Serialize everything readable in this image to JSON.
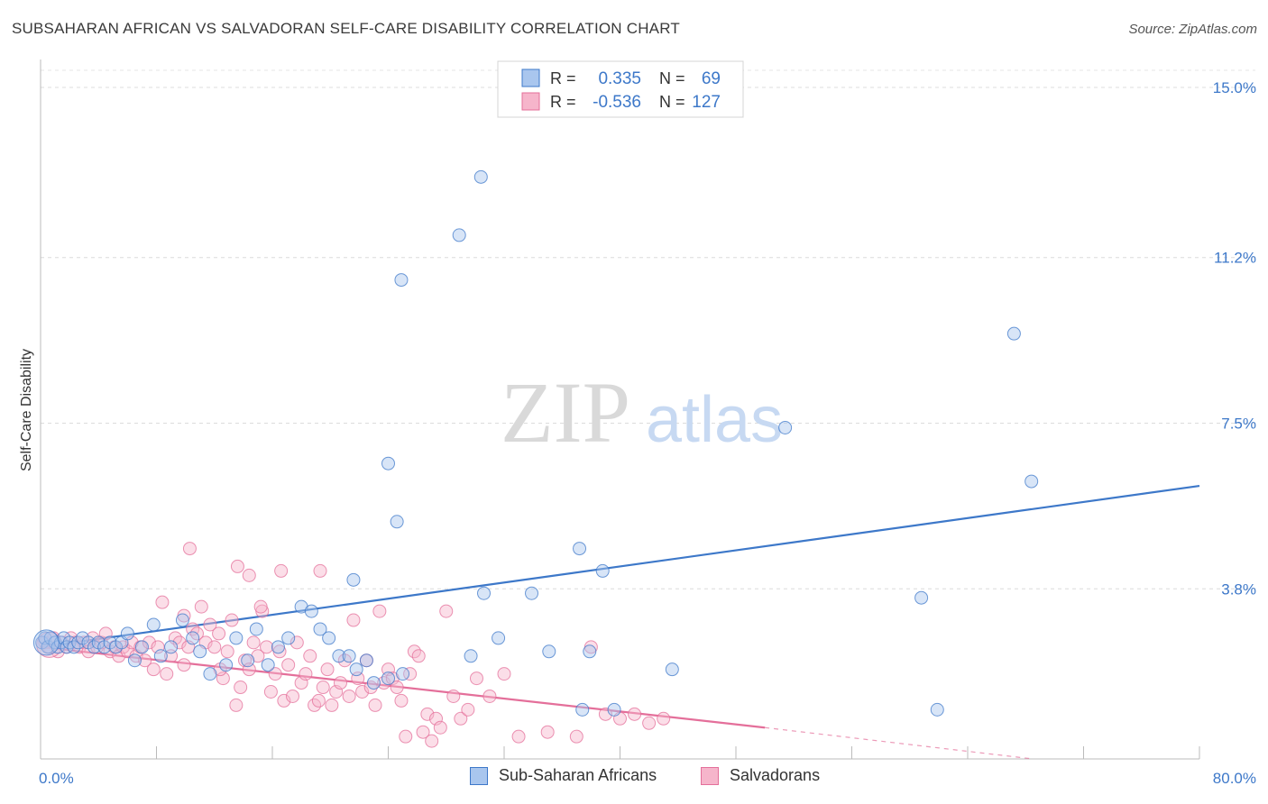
{
  "header": {
    "title": "SUBSAHARAN AFRICAN VS SALVADORAN SELF-CARE DISABILITY CORRELATION CHART",
    "source": "Source: ZipAtlas.com"
  },
  "stats": {
    "r_label": "R =",
    "n_label": "N =",
    "rows": [
      {
        "r": "0.335",
        "n": "69"
      },
      {
        "r": "-0.536",
        "n": "127"
      }
    ]
  },
  "watermark": {
    "zip": "ZIP",
    "atlas": "atlas"
  },
  "chart_data": {
    "type": "scatter",
    "ylabel": "Self-Care Disability",
    "xlabel": "",
    "xlim": [
      0,
      80
    ],
    "ylim": [
      0,
      15.5
    ],
    "x_tick_labels": [
      "0.0%",
      "80.0%"
    ],
    "y_ticks": [
      3.8,
      7.5,
      11.2,
      15.0
    ],
    "y_tick_labels": [
      "3.8%",
      "7.5%",
      "11.2%",
      "15.0%"
    ],
    "grid": true,
    "colors": {
      "blue": "#3d78c9",
      "blue_fill": "#a9c6ee",
      "pink": "#e46f9a",
      "pink_fill": "#f6b5cb"
    },
    "series": [
      {
        "name": "Sub-Saharan Africans",
        "color": "#3d78c9",
        "trend": {
          "x0": 0,
          "y0": 2.5,
          "x1": 80,
          "y1": 6.1
        },
        "points": [
          [
            0.1,
            2.6
          ],
          [
            0.3,
            2.7
          ],
          [
            0.5,
            2.5
          ],
          [
            0.7,
            2.7
          ],
          [
            1.0,
            2.6
          ],
          [
            1.2,
            2.5
          ],
          [
            1.4,
            2.6
          ],
          [
            1.6,
            2.7
          ],
          [
            1.8,
            2.5
          ],
          [
            2.0,
            2.6
          ],
          [
            2.3,
            2.5
          ],
          [
            2.6,
            2.6
          ],
          [
            2.9,
            2.7
          ],
          [
            3.3,
            2.6
          ],
          [
            3.7,
            2.5
          ],
          [
            4.0,
            2.6
          ],
          [
            4.4,
            2.5
          ],
          [
            4.8,
            2.6
          ],
          [
            5.2,
            2.5
          ],
          [
            5.6,
            2.6
          ],
          [
            6.0,
            2.8
          ],
          [
            6.5,
            2.2
          ],
          [
            7.0,
            2.5
          ],
          [
            7.8,
            3.0
          ],
          [
            8.3,
            2.3
          ],
          [
            9.0,
            2.5
          ],
          [
            9.8,
            3.1
          ],
          [
            10.5,
            2.7
          ],
          [
            11.0,
            2.4
          ],
          [
            11.7,
            1.9
          ],
          [
            12.8,
            2.1
          ],
          [
            13.5,
            2.7
          ],
          [
            14.3,
            2.2
          ],
          [
            14.9,
            2.9
          ],
          [
            15.7,
            2.1
          ],
          [
            16.4,
            2.5
          ],
          [
            17.1,
            2.7
          ],
          [
            18.0,
            3.4
          ],
          [
            18.7,
            3.3
          ],
          [
            19.3,
            2.9
          ],
          [
            19.9,
            2.7
          ],
          [
            20.6,
            2.3
          ],
          [
            21.3,
            2.3
          ],
          [
            21.8,
            2.0
          ],
          [
            22.5,
            2.2
          ],
          [
            23.0,
            1.7
          ],
          [
            24.0,
            1.8
          ],
          [
            25.0,
            1.9
          ],
          [
            21.6,
            4.0
          ],
          [
            24.6,
            5.3
          ],
          [
            24.0,
            6.6
          ],
          [
            24.9,
            10.7
          ],
          [
            28.9,
            11.7
          ],
          [
            30.4,
            13.0
          ],
          [
            30.6,
            3.7
          ],
          [
            29.7,
            2.3
          ],
          [
            31.6,
            2.7
          ],
          [
            33.9,
            3.7
          ],
          [
            35.1,
            2.4
          ],
          [
            37.4,
            1.1
          ],
          [
            37.2,
            4.7
          ],
          [
            38.8,
            4.2
          ],
          [
            37.9,
            2.4
          ],
          [
            39.6,
            1.1
          ],
          [
            43.6,
            2.0
          ],
          [
            51.4,
            7.4
          ],
          [
            60.8,
            3.6
          ],
          [
            61.9,
            1.1
          ],
          [
            67.2,
            9.5
          ],
          [
            68.4,
            6.2
          ]
        ],
        "radius": 7,
        "big_points": [
          [
            0.4,
            2.6
          ]
        ]
      },
      {
        "name": "Salvadorans",
        "color": "#e46f9a",
        "trend": {
          "x0": 0,
          "y0": 2.5,
          "x1": 50,
          "y1": 0.7,
          "dash_x1": 68.5,
          "dash_y1": 0.0
        },
        "points": [
          [
            0.3,
            2.6
          ],
          [
            0.6,
            2.5
          ],
          [
            0.9,
            2.7
          ],
          [
            1.2,
            2.4
          ],
          [
            1.5,
            2.6
          ],
          [
            1.8,
            2.5
          ],
          [
            2.1,
            2.7
          ],
          [
            2.4,
            2.6
          ],
          [
            2.7,
            2.5
          ],
          [
            3.0,
            2.6
          ],
          [
            3.3,
            2.4
          ],
          [
            3.6,
            2.7
          ],
          [
            3.9,
            2.5
          ],
          [
            4.2,
            2.6
          ],
          [
            4.5,
            2.8
          ],
          [
            4.8,
            2.4
          ],
          [
            5.1,
            2.5
          ],
          [
            5.4,
            2.3
          ],
          [
            5.7,
            2.5
          ],
          [
            6.0,
            2.4
          ],
          [
            6.3,
            2.6
          ],
          [
            6.6,
            2.3
          ],
          [
            6.9,
            2.5
          ],
          [
            7.2,
            2.2
          ],
          [
            7.5,
            2.6
          ],
          [
            7.8,
            2.0
          ],
          [
            8.1,
            2.5
          ],
          [
            8.4,
            3.5
          ],
          [
            8.7,
            1.9
          ],
          [
            9.0,
            2.3
          ],
          [
            9.3,
            2.7
          ],
          [
            9.6,
            2.6
          ],
          [
            9.9,
            2.1
          ],
          [
            10.2,
            2.5
          ],
          [
            10.5,
            2.9
          ],
          [
            10.8,
            2.8
          ],
          [
            11.1,
            3.4
          ],
          [
            11.4,
            2.6
          ],
          [
            11.7,
            3.0
          ],
          [
            12.0,
            2.5
          ],
          [
            12.3,
            2.8
          ],
          [
            12.6,
            1.8
          ],
          [
            12.9,
            2.4
          ],
          [
            13.2,
            3.1
          ],
          [
            13.5,
            1.2
          ],
          [
            13.8,
            1.6
          ],
          [
            14.1,
            2.2
          ],
          [
            14.4,
            2.0
          ],
          [
            14.7,
            2.6
          ],
          [
            15.0,
            2.3
          ],
          [
            15.3,
            3.3
          ],
          [
            15.6,
            2.5
          ],
          [
            15.9,
            1.5
          ],
          [
            16.2,
            1.9
          ],
          [
            16.5,
            2.4
          ],
          [
            16.8,
            1.3
          ],
          [
            17.1,
            2.1
          ],
          [
            17.4,
            1.4
          ],
          [
            17.7,
            2.6
          ],
          [
            18.0,
            1.7
          ],
          [
            18.3,
            1.9
          ],
          [
            18.6,
            2.3
          ],
          [
            18.9,
            1.2
          ],
          [
            19.2,
            1.3
          ],
          [
            19.5,
            1.6
          ],
          [
            19.8,
            2.0
          ],
          [
            20.1,
            1.2
          ],
          [
            20.4,
            1.5
          ],
          [
            20.7,
            1.7
          ],
          [
            21.0,
            2.2
          ],
          [
            21.3,
            1.4
          ],
          [
            21.6,
            3.1
          ],
          [
            21.9,
            1.8
          ],
          [
            22.2,
            1.5
          ],
          [
            22.5,
            2.2
          ],
          [
            22.8,
            1.6
          ],
          [
            23.1,
            1.2
          ],
          [
            23.4,
            3.3
          ],
          [
            23.7,
            1.7
          ],
          [
            24.0,
            2.0
          ],
          [
            24.3,
            1.8
          ],
          [
            24.6,
            1.6
          ],
          [
            24.9,
            1.3
          ],
          [
            25.2,
            0.5
          ],
          [
            25.5,
            1.9
          ],
          [
            25.8,
            2.4
          ],
          [
            26.1,
            2.3
          ],
          [
            26.4,
            0.6
          ],
          [
            26.7,
            1.0
          ],
          [
            27.0,
            0.4
          ],
          [
            27.3,
            0.9
          ],
          [
            27.6,
            0.7
          ],
          [
            28.0,
            3.3
          ],
          [
            28.5,
            1.4
          ],
          [
            29.0,
            0.9
          ],
          [
            29.5,
            1.1
          ],
          [
            30.1,
            1.8
          ],
          [
            31.0,
            1.4
          ],
          [
            32.0,
            1.9
          ],
          [
            33.0,
            0.5
          ],
          [
            35.0,
            0.6
          ],
          [
            37.0,
            0.5
          ],
          [
            38.0,
            2.5
          ],
          [
            39.0,
            1.0
          ],
          [
            40.0,
            0.9
          ],
          [
            41.0,
            1.0
          ],
          [
            42.0,
            0.8
          ],
          [
            43.0,
            0.9
          ],
          [
            10.3,
            4.7
          ],
          [
            13.6,
            4.3
          ],
          [
            14.4,
            4.1
          ],
          [
            16.6,
            4.2
          ],
          [
            19.3,
            4.2
          ],
          [
            15.2,
            3.4
          ],
          [
            9.9,
            3.2
          ],
          [
            12.4,
            2.0
          ]
        ],
        "radius": 7,
        "big_points": [
          [
            0.6,
            2.55
          ]
        ]
      }
    ]
  },
  "legend": {
    "items": [
      {
        "label": "Sub-Saharan Africans"
      },
      {
        "label": "Salvadorans"
      }
    ]
  }
}
